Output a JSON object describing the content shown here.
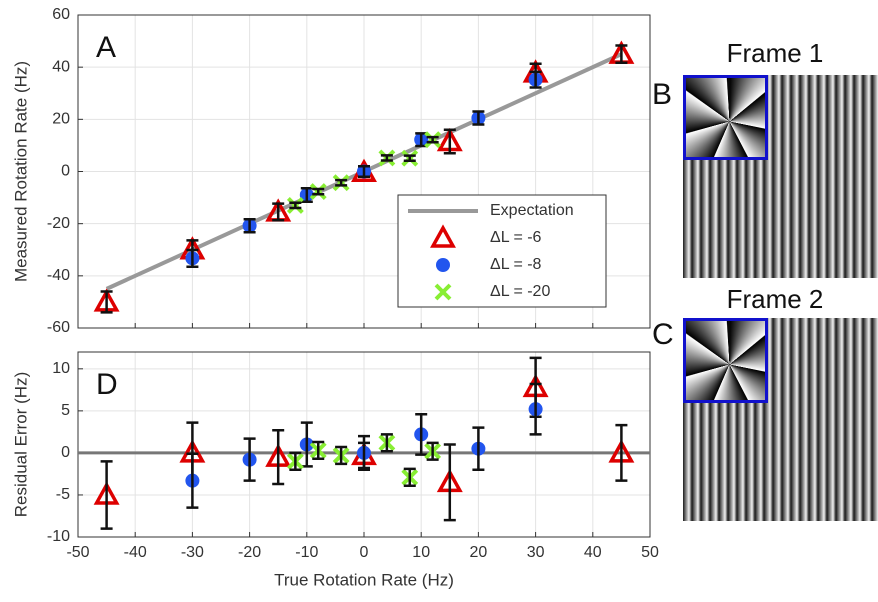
{
  "chart_data": [
    {
      "type": "scatter",
      "panel_label": "A",
      "ylabel": "Measured Rotation Rate (Hz)",
      "xlim": [
        -50,
        50
      ],
      "xticks": [
        -50,
        -40,
        -30,
        -20,
        -10,
        0,
        10,
        20,
        30,
        40,
        50
      ],
      "xtick_labels": false,
      "ylim": [
        -60,
        60
      ],
      "yticks": [
        -60,
        -40,
        -20,
        0,
        20,
        40,
        60
      ],
      "grid": true,
      "legend": true,
      "series": [
        {
          "name": "Expectation",
          "marker": "line",
          "color": "#999999",
          "x": [
            -45,
            45
          ],
          "values": [
            -45,
            45
          ]
        },
        {
          "name": "ΔL = -6",
          "marker": "triangle",
          "color": "#dd0000",
          "x": [
            -45,
            -30,
            -15,
            0,
            15,
            30,
            45
          ],
          "values": [
            -50,
            -30,
            -15.5,
            -0.3,
            11.5,
            37.8,
            45
          ],
          "errors": [
            4,
            3.6,
            3.2,
            1.5,
            4.5,
            3.5,
            3.3
          ]
        },
        {
          "name": "ΔL = -8",
          "marker": "circle",
          "color": "#2255ee",
          "x": [
            -30,
            -20,
            -10,
            0,
            10,
            20,
            30
          ],
          "values": [
            -33.3,
            -20.8,
            -9,
            0,
            12.2,
            20.5,
            35.2
          ],
          "errors": [
            3.2,
            2.5,
            2.6,
            2,
            2.4,
            2.5,
            3
          ]
        },
        {
          "name": "ΔL = -20",
          "marker": "x",
          "color": "#88ee33",
          "x": [
            -12,
            -8,
            -4,
            4,
            8,
            12
          ],
          "values": [
            -13,
            -7.7,
            -4.3,
            5.2,
            5.1,
            12.2
          ],
          "errors": [
            1,
            1,
            1,
            1,
            1,
            1
          ]
        }
      ]
    },
    {
      "type": "scatter",
      "panel_label": "D",
      "xlabel": "True Rotation Rate (Hz)",
      "ylabel": "Residual Error (Hz)",
      "xlim": [
        -50,
        50
      ],
      "xticks": [
        -50,
        -40,
        -30,
        -20,
        -10,
        0,
        10,
        20,
        30,
        40,
        50
      ],
      "xtick_labels": true,
      "ylim": [
        -10,
        12
      ],
      "yticks": [
        -10,
        -5,
        0,
        5,
        10
      ],
      "grid": true,
      "legend": false,
      "hline": 0,
      "series": [
        {
          "name": "ΔL = -6",
          "marker": "triangle",
          "color": "#dd0000",
          "x": [
            -45,
            -30,
            -15,
            0,
            15,
            30,
            45
          ],
          "values": [
            -5,
            0,
            -0.5,
            -0.3,
            -3.5,
            7.8,
            0
          ],
          "errors": [
            4,
            3.6,
            3.2,
            1.5,
            4.5,
            3.5,
            3.3
          ]
        },
        {
          "name": "ΔL = -8",
          "marker": "circle",
          "color": "#2255ee",
          "x": [
            -30,
            -20,
            -10,
            0,
            10,
            20,
            30
          ],
          "values": [
            -3.3,
            -0.8,
            1,
            0,
            2.2,
            0.5,
            5.2
          ],
          "errors": [
            3.2,
            2.5,
            2.6,
            2,
            2.4,
            2.5,
            3
          ]
        },
        {
          "name": "ΔL = -20",
          "marker": "x",
          "color": "#88ee33",
          "x": [
            -12,
            -8,
            -4,
            4,
            8,
            12
          ],
          "values": [
            -1,
            0.3,
            -0.3,
            1.2,
            -2.9,
            0.2
          ],
          "errors": [
            1,
            1,
            1,
            1,
            1,
            1
          ]
        }
      ]
    }
  ],
  "images": [
    {
      "label": "B",
      "title": "Frame 1"
    },
    {
      "label": "C",
      "title": "Frame 2"
    }
  ]
}
